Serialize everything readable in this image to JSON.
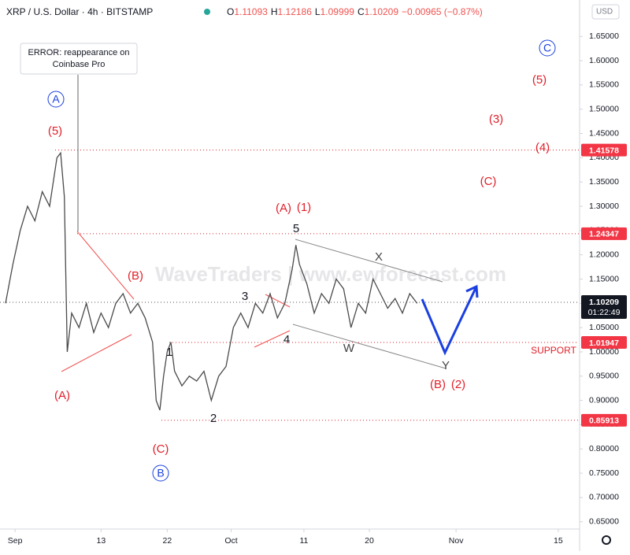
{
  "chart_data": {
    "type": "line",
    "title": "XRP / U.S. Dollar · 4h · BITSTAMP",
    "ohlc": [
      "O",
      "1.11093",
      "H",
      "1.12186",
      "L",
      "1.09999",
      "C",
      "1.10209",
      "−0.00965 (−0.87%)"
    ],
    "currency": "USD",
    "watermark": "WaveTraders | www.ewforecast.com",
    "callout": [
      "ERROR: reappearance on",
      "Coinbase Pro"
    ],
    "x": [
      0,
      1,
      2,
      3,
      4,
      5,
      6,
      7,
      7.5,
      8,
      8.4,
      9,
      10,
      11,
      12,
      13,
      14,
      15,
      16,
      17,
      18,
      19,
      20,
      20.5,
      21,
      21.5,
      22,
      22.5,
      23,
      24,
      25,
      26,
      27,
      28,
      29,
      30,
      31,
      32,
      33,
      34,
      35,
      36,
      37,
      38,
      39,
      39.5,
      40,
      41,
      42,
      43,
      44,
      45,
      46,
      47,
      48,
      49,
      50,
      51,
      52,
      53,
      54,
      55,
      56
    ],
    "series": [
      {
        "color": "#4a4a4a",
        "values": [
          1.1,
          1.18,
          1.25,
          1.3,
          1.27,
          1.33,
          1.3,
          1.4,
          1.41,
          1.32,
          1.0,
          1.08,
          1.05,
          1.1,
          1.04,
          1.08,
          1.05,
          1.1,
          1.12,
          1.08,
          1.1,
          1.07,
          1.02,
          0.9,
          0.88,
          0.95,
          1.0,
          1.02,
          0.96,
          0.93,
          0.95,
          0.94,
          0.96,
          0.9,
          0.95,
          0.97,
          1.05,
          1.08,
          1.05,
          1.1,
          1.08,
          1.12,
          1.07,
          1.1,
          1.17,
          1.22,
          1.18,
          1.14,
          1.08,
          1.12,
          1.1,
          1.15,
          1.13,
          1.05,
          1.1,
          1.08,
          1.15,
          1.12,
          1.09,
          1.11,
          1.08,
          1.12,
          1.1
        ]
      }
    ],
    "xlim": [
      0,
      78
    ],
    "xticks": [
      {
        "value": 1.3,
        "label": "Sep"
      },
      {
        "value": 13,
        "label": "13"
      },
      {
        "value": 22,
        "label": "22"
      },
      {
        "value": 30.7,
        "label": "Oct"
      },
      {
        "value": 40.6,
        "label": "11"
      },
      {
        "value": 49.5,
        "label": "20"
      },
      {
        "value": 61.3,
        "label": "Nov"
      },
      {
        "value": 75.2,
        "label": "15"
      }
    ],
    "ylim": [
      0.635,
      1.725
    ],
    "yticks": [
      {
        "value": 0.65,
        "label": "0.65000"
      },
      {
        "value": 0.7,
        "label": "0.70000"
      },
      {
        "value": 0.75,
        "label": "0.75000"
      },
      {
        "value": 0.8,
        "label": "0.80000"
      },
      {
        "value": 0.85,
        "label": "0.85000"
      },
      {
        "value": 0.9,
        "label": "0.90000"
      },
      {
        "value": 0.95,
        "label": "0.95000"
      },
      {
        "value": 1.0,
        "label": "1.00000"
      },
      {
        "value": 1.05,
        "label": "1.05000"
      },
      {
        "value": 1.1,
        "label": "1.10000"
      },
      {
        "value": 1.15,
        "label": "1.15000"
      },
      {
        "value": 1.2,
        "label": "1.20000"
      },
      {
        "value": 1.25,
        "label": "1.25000"
      },
      {
        "value": 1.3,
        "label": "1.30000"
      },
      {
        "value": 1.35,
        "label": "1.35000"
      },
      {
        "value": 1.4,
        "label": "1.40000"
      },
      {
        "value": 1.45,
        "label": "1.45000"
      },
      {
        "value": 1.5,
        "label": "1.50000"
      },
      {
        "value": 1.55,
        "label": "1.55000"
      },
      {
        "value": 1.6,
        "label": "1.60000"
      },
      {
        "value": 1.65,
        "label": "1.65000"
      }
    ],
    "price_levels": [
      1.41578,
      1.24347,
      1.01947,
      0.85913
    ],
    "current_price": 1.10209,
    "countdown": "01:22:49",
    "annotations": [
      "(5)",
      "A",
      "(A)",
      "(B)",
      "1",
      "2",
      "(C)",
      "B",
      "3",
      "4",
      "5",
      "(A)",
      "(1)",
      "X",
      "W",
      "Y",
      "(B)",
      "(2)",
      "SUPPORT",
      "(C)",
      "(4)",
      "(3)",
      "(5)",
      "C"
    ]
  }
}
